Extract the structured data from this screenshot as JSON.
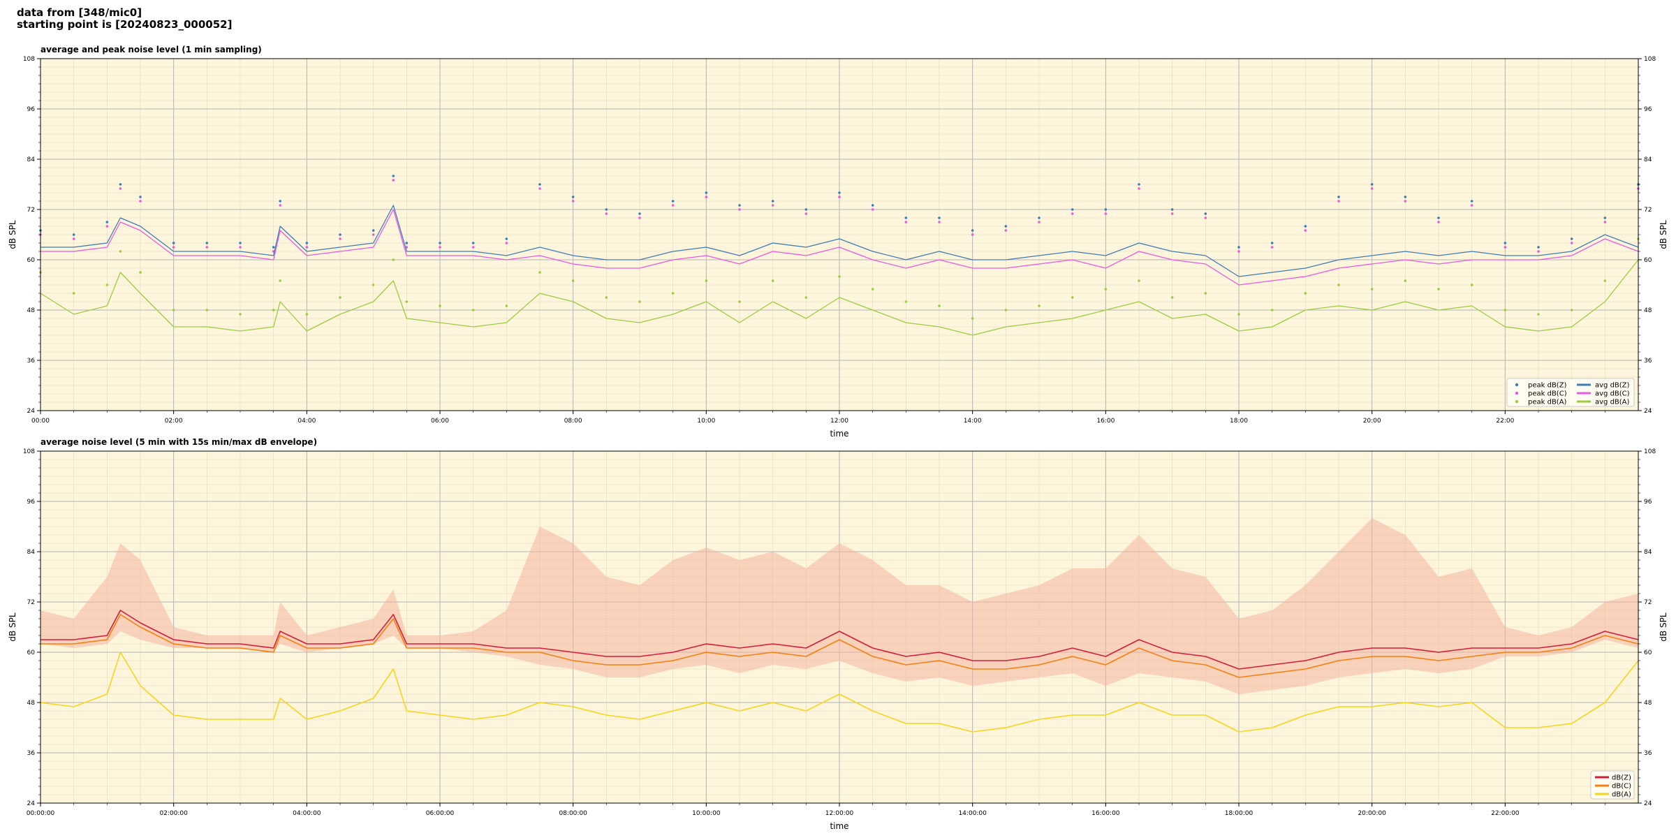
{
  "header": {
    "line1": "data from [348/mic0]",
    "line2": "starting point is [20240823_000052]"
  },
  "colors": {
    "plot_bg": "#fdf5dc",
    "z": "#3d7db5",
    "c": "#e85ae0",
    "a": "#9ccc3c",
    "z2": "#d41c3c",
    "c2": "#f57f10",
    "a2": "#f7d51a",
    "envelope": "#f4b5a0"
  },
  "chart_data": [
    {
      "type": "line",
      "title": "average and peak noise level (1 min sampling)",
      "xlabel": "time",
      "ylabel": "dB SPL",
      "ylim": [
        24,
        108
      ],
      "xlim_hours": [
        0,
        24
      ],
      "y_ticks": [
        "24",
        "36",
        "48",
        "60",
        "72",
        "84",
        "96",
        "108"
      ],
      "x_ticks": [
        "00:00",
        "02:00",
        "04:00",
        "06:00",
        "08:00",
        "10:00",
        "12:00",
        "14:00",
        "16:00",
        "18:00",
        "20:00",
        "22:00"
      ],
      "grid": true,
      "legend_position": "bottom-right",
      "x_hours": [
        0,
        0.5,
        1,
        1.2,
        1.5,
        2,
        2.5,
        3,
        3.5,
        3.6,
        4,
        4.5,
        5,
        5.3,
        5.5,
        6,
        6.5,
        7,
        7.5,
        8,
        8.5,
        9,
        9.5,
        10,
        10.5,
        11,
        11.5,
        12,
        12.5,
        13,
        13.5,
        14,
        14.5,
        15,
        15.5,
        16,
        16.5,
        17,
        17.5,
        18,
        18.5,
        19,
        19.5,
        20,
        20.5,
        21,
        21.5,
        22,
        22.5,
        23,
        23.5,
        24
      ],
      "series": [
        {
          "name": "avg dB(Z)",
          "kind": "line",
          "values": [
            63,
            63,
            64,
            70,
            68,
            62,
            62,
            62,
            61,
            68,
            62,
            63,
            64,
            73,
            62,
            62,
            62,
            61,
            63,
            61,
            60,
            60,
            62,
            63,
            61,
            64,
            63,
            65,
            62,
            60,
            62,
            60,
            60,
            61,
            62,
            61,
            64,
            62,
            61,
            56,
            57,
            58,
            60,
            61,
            62,
            61,
            62,
            61,
            61,
            62,
            66,
            63
          ]
        },
        {
          "name": "avg dB(C)",
          "kind": "line",
          "values": [
            62,
            62,
            63,
            69,
            67,
            61,
            61,
            61,
            60,
            67,
            61,
            62,
            63,
            72,
            61,
            61,
            61,
            60,
            61,
            59,
            58,
            58,
            60,
            61,
            59,
            62,
            61,
            63,
            60,
            58,
            60,
            58,
            58,
            59,
            60,
            58,
            62,
            60,
            59,
            54,
            55,
            56,
            58,
            59,
            60,
            59,
            60,
            60,
            60,
            61,
            65,
            62
          ]
        },
        {
          "name": "avg dB(A)",
          "kind": "line",
          "values": [
            52,
            47,
            49,
            57,
            52,
            44,
            44,
            43,
            44,
            50,
            43,
            47,
            50,
            55,
            46,
            45,
            44,
            45,
            52,
            50,
            46,
            45,
            47,
            50,
            45,
            50,
            46,
            51,
            48,
            45,
            44,
            42,
            44,
            45,
            46,
            48,
            50,
            46,
            47,
            43,
            44,
            48,
            49,
            48,
            50,
            48,
            49,
            44,
            43,
            44,
            50,
            60
          ]
        },
        {
          "name": "peak dB(Z)",
          "kind": "scatter",
          "values": [
            67,
            66,
            69,
            78,
            75,
            64,
            64,
            64,
            63,
            74,
            64,
            66,
            67,
            80,
            64,
            64,
            64,
            65,
            78,
            75,
            72,
            71,
            74,
            76,
            73,
            74,
            72,
            76,
            73,
            70,
            70,
            67,
            68,
            70,
            72,
            72,
            78,
            72,
            71,
            63,
            64,
            68,
            75,
            78,
            75,
            70,
            74,
            64,
            63,
            65,
            70,
            78
          ]
        },
        {
          "name": "peak dB(C)",
          "kind": "scatter",
          "values": [
            66,
            65,
            68,
            77,
            74,
            63,
            63,
            63,
            62,
            73,
            63,
            65,
            66,
            79,
            63,
            63,
            63,
            64,
            77,
            74,
            71,
            70,
            73,
            75,
            72,
            73,
            71,
            75,
            72,
            69,
            69,
            66,
            67,
            69,
            71,
            71,
            77,
            71,
            70,
            62,
            63,
            67,
            74,
            77,
            74,
            69,
            73,
            63,
            62,
            64,
            69,
            77
          ]
        },
        {
          "name": "peak dB(A)",
          "kind": "scatter",
          "values": [
            57,
            52,
            54,
            62,
            57,
            48,
            48,
            47,
            48,
            55,
            47,
            51,
            54,
            60,
            50,
            49,
            48,
            49,
            57,
            55,
            51,
            50,
            52,
            55,
            50,
            55,
            51,
            56,
            53,
            50,
            49,
            46,
            48,
            49,
            51,
            53,
            55,
            51,
            52,
            47,
            48,
            52,
            54,
            53,
            55,
            53,
            54,
            48,
            47,
            48,
            55,
            65
          ]
        }
      ]
    },
    {
      "type": "line",
      "title": "average noise level (5 min with 15s min/max dB envelope)",
      "xlabel": "time",
      "ylabel": "dB SPL",
      "ylim": [
        24,
        108
      ],
      "xlim_hours": [
        0,
        24
      ],
      "y_ticks": [
        "24",
        "36",
        "48",
        "60",
        "72",
        "84",
        "96",
        "108"
      ],
      "x_ticks": [
        "00:00:00",
        "02:00:00",
        "04:00:00",
        "06:00:00",
        "08:00:00",
        "10:00:00",
        "12:00:00",
        "14:00:00",
        "16:00:00",
        "18:00:00",
        "20:00:00",
        "22:00:00"
      ],
      "grid": true,
      "legend_position": "bottom-right",
      "x_hours": [
        0,
        0.5,
        1,
        1.2,
        1.5,
        2,
        2.5,
        3,
        3.5,
        3.6,
        4,
        4.5,
        5,
        5.3,
        5.5,
        6,
        6.5,
        7,
        7.5,
        8,
        8.5,
        9,
        9.5,
        10,
        10.5,
        11,
        11.5,
        12,
        12.5,
        13,
        13.5,
        14,
        14.5,
        15,
        15.5,
        16,
        16.5,
        17,
        17.5,
        18,
        18.5,
        19,
        19.5,
        20,
        20.5,
        21,
        21.5,
        22,
        22.5,
        23,
        23.5,
        24
      ],
      "envelope": {
        "min": [
          62,
          61,
          62,
          65,
          63,
          61,
          61,
          61,
          60,
          62,
          60,
          61,
          62,
          64,
          61,
          61,
          60,
          59,
          57,
          56,
          54,
          54,
          56,
          57,
          55,
          57,
          56,
          58,
          55,
          53,
          54,
          52,
          53,
          54,
          55,
          52,
          55,
          54,
          53,
          50,
          51,
          52,
          54,
          55,
          56,
          55,
          56,
          59,
          59,
          60,
          63,
          61
        ],
        "max": [
          70,
          68,
          78,
          86,
          82,
          66,
          64,
          64,
          64,
          72,
          64,
          66,
          68,
          75,
          64,
          64,
          65,
          70,
          90,
          86,
          78,
          76,
          82,
          85,
          82,
          84,
          80,
          86,
          82,
          76,
          76,
          72,
          74,
          76,
          80,
          80,
          88,
          80,
          78,
          68,
          70,
          76,
          84,
          92,
          88,
          78,
          80,
          66,
          64,
          66,
          72,
          74
        ]
      },
      "series": [
        {
          "name": "dB(Z)",
          "values": [
            63,
            63,
            64,
            70,
            67,
            63,
            62,
            62,
            61,
            65,
            62,
            62,
            63,
            69,
            62,
            62,
            62,
            61,
            61,
            60,
            59,
            59,
            60,
            62,
            61,
            62,
            61,
            65,
            61,
            59,
            60,
            58,
            58,
            59,
            61,
            59,
            63,
            60,
            59,
            56,
            57,
            58,
            60,
            61,
            61,
            60,
            61,
            61,
            61,
            62,
            65,
            63
          ]
        },
        {
          "name": "dB(C)",
          "values": [
            62,
            62,
            63,
            69,
            66,
            62,
            61,
            61,
            60,
            64,
            61,
            61,
            62,
            68,
            61,
            61,
            61,
            60,
            60,
            58,
            57,
            57,
            58,
            60,
            59,
            60,
            59,
            63,
            59,
            57,
            58,
            56,
            56,
            57,
            59,
            57,
            61,
            58,
            57,
            54,
            55,
            56,
            58,
            59,
            59,
            58,
            59,
            60,
            60,
            61,
            64,
            62
          ]
        },
        {
          "name": "dB(A)",
          "values": [
            48,
            47,
            50,
            60,
            52,
            45,
            44,
            44,
            44,
            49,
            44,
            46,
            49,
            56,
            46,
            45,
            44,
            45,
            48,
            47,
            45,
            44,
            46,
            48,
            46,
            48,
            46,
            50,
            46,
            43,
            43,
            41,
            42,
            44,
            45,
            45,
            48,
            45,
            45,
            41,
            42,
            45,
            47,
            47,
            48,
            47,
            48,
            42,
            42,
            43,
            48,
            58
          ]
        }
      ]
    }
  ]
}
